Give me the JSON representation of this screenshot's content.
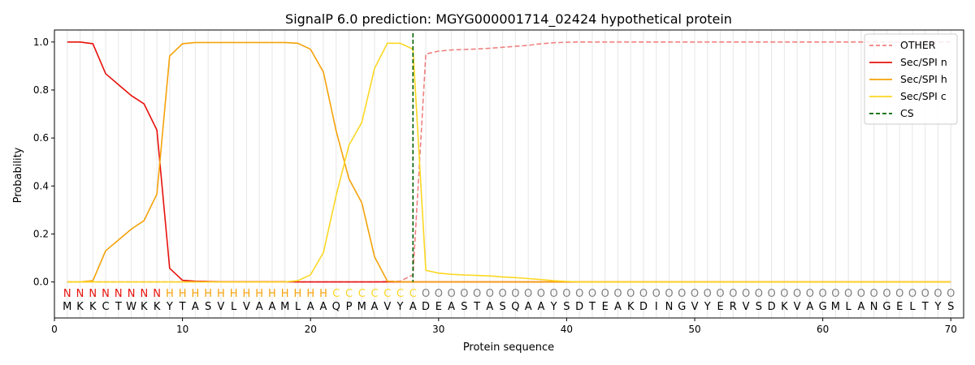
{
  "chart_data": {
    "type": "line",
    "title": "SignalP 6.0 prediction: MGYG000001714_02424 hypothetical protein",
    "xlabel": "Protein sequence",
    "ylabel": "Probability",
    "xlim": [
      0,
      71
    ],
    "ylim": [
      -0.15,
      1.05
    ],
    "x_ticks": [
      0,
      10,
      20,
      30,
      40,
      50,
      60,
      70
    ],
    "y_ticks": [
      "0.0",
      "0.2",
      "0.4",
      "0.6",
      "0.8",
      "1.0"
    ],
    "grid": "vertical lines at each residue",
    "legend_position": "top-right",
    "colors": {
      "OTHER": "#f08080",
      "Sec/SPI n": "#e8120c",
      "Sec/SPI h": "#f5a20a",
      "Sec/SPI c": "#fcd723",
      "CS": "#006400"
    },
    "sequence": [
      "M",
      "K",
      "K",
      "C",
      "T",
      "W",
      "K",
      "K",
      "Y",
      "T",
      "A",
      "S",
      "V",
      "L",
      "V",
      "A",
      "A",
      "M",
      "L",
      "A",
      "A",
      "Q",
      "P",
      "M",
      "A",
      "V",
      "Y",
      "A",
      "D",
      "E",
      "A",
      "S",
      "T",
      "A",
      "S",
      "Q",
      "A",
      "A",
      "Y",
      "S",
      "D",
      "T",
      "E",
      "A",
      "K",
      "D",
      "I",
      "N",
      "G",
      "V",
      "Y",
      "E",
      "R",
      "V",
      "S",
      "D",
      "K",
      "V",
      "A",
      "G",
      "M",
      "L",
      "A",
      "N",
      "G",
      "E",
      "L",
      "T",
      "Y",
      "S"
    ],
    "labels": [
      "N",
      "N",
      "N",
      "N",
      "N",
      "N",
      "N",
      "N",
      "H",
      "H",
      "H",
      "H",
      "H",
      "H",
      "H",
      "H",
      "H",
      "H",
      "H",
      "H",
      "H",
      "C",
      "C",
      "C",
      "C",
      "C",
      "C",
      "C",
      "O",
      "O",
      "O",
      "O",
      "O",
      "O",
      "O",
      "O",
      "O",
      "O",
      "O",
      "O",
      "O",
      "O",
      "O",
      "O",
      "O",
      "O",
      "O",
      "O",
      "O",
      "O",
      "O",
      "O",
      "O",
      "O",
      "O",
      "O",
      "O",
      "O",
      "O",
      "O",
      "O",
      "O",
      "O",
      "O",
      "O",
      "O",
      "O",
      "O",
      "O",
      "O"
    ],
    "label_colors": {
      "N": "#e8120c",
      "H": "#f5a20a",
      "C": "#fcd723",
      "O": "#808080"
    },
    "cleavage_site": 28,
    "series": [
      {
        "name": "OTHER",
        "style": "dashed",
        "values": [
          0,
          0,
          0,
          0,
          0,
          0,
          0,
          0,
          0,
          0,
          0,
          0,
          0,
          0,
          0,
          0,
          0,
          0,
          0,
          0,
          0,
          0,
          0,
          0,
          0,
          0.002,
          0.003,
          0.03,
          0.95,
          0.962,
          0.967,
          0.969,
          0.971,
          0.974,
          0.978,
          0.982,
          0.986,
          0.993,
          0.997,
          0.999,
          1,
          1,
          1,
          1,
          1,
          1,
          1,
          1,
          1,
          1,
          1,
          1,
          1,
          1,
          1,
          1,
          1,
          1,
          1,
          1,
          1,
          1,
          1,
          1,
          1,
          1,
          1,
          1,
          1,
          1
        ]
      },
      {
        "name": "Sec/SPI n",
        "style": "solid",
        "values": [
          1,
          1,
          0.993,
          0.868,
          0.822,
          0.777,
          0.742,
          0.633,
          0.057,
          0.007,
          0.003,
          0.002,
          0.001,
          0.001,
          0.001,
          0.001,
          0.001,
          0.001,
          0,
          0,
          0,
          0,
          0,
          0,
          0,
          0,
          0,
          0,
          0,
          0,
          0,
          0,
          0,
          0,
          0,
          0,
          0,
          0,
          0,
          0,
          0,
          0,
          0,
          0,
          0,
          0,
          0,
          0,
          0,
          0,
          0,
          0,
          0,
          0,
          0,
          0,
          0,
          0,
          0,
          0,
          0,
          0,
          0,
          0,
          0,
          0,
          0,
          0,
          0,
          0
        ]
      },
      {
        "name": "Sec/SPI h",
        "style": "solid",
        "values": [
          0,
          0,
          0.005,
          0.13,
          0.175,
          0.22,
          0.256,
          0.366,
          0.942,
          0.993,
          0.998,
          0.998,
          0.998,
          0.998,
          0.998,
          0.998,
          0.998,
          0.998,
          0.995,
          0.97,
          0.875,
          0.63,
          0.43,
          0.33,
          0.105,
          0.003,
          0,
          0,
          0,
          0,
          0,
          0,
          0,
          0,
          0,
          0,
          0,
          0,
          0,
          0,
          0,
          0,
          0,
          0,
          0,
          0,
          0,
          0,
          0,
          0,
          0,
          0,
          0,
          0,
          0,
          0,
          0,
          0,
          0,
          0,
          0,
          0,
          0,
          0,
          0,
          0,
          0,
          0,
          0,
          0
        ]
      },
      {
        "name": "Sec/SPI c",
        "style": "solid",
        "values": [
          0,
          0,
          0,
          0,
          0,
          0,
          0,
          0,
          0,
          0,
          0,
          0,
          0,
          0,
          0,
          0,
          0,
          0,
          0.005,
          0.03,
          0.122,
          0.36,
          0.57,
          0.665,
          0.89,
          0.995,
          0.995,
          0.97,
          0.048,
          0.037,
          0.032,
          0.029,
          0.027,
          0.025,
          0.021,
          0.018,
          0.014,
          0.01,
          0.005,
          0.002,
          0,
          0,
          0,
          0,
          0,
          0,
          0,
          0,
          0,
          0,
          0,
          0,
          0,
          0,
          0,
          0,
          0,
          0,
          0,
          0,
          0,
          0,
          0,
          0,
          0,
          0,
          0,
          0,
          0,
          0
        ]
      }
    ],
    "legend": [
      "OTHER",
      "Sec/SPI n",
      "Sec/SPI h",
      "Sec/SPI c",
      "CS"
    ]
  }
}
